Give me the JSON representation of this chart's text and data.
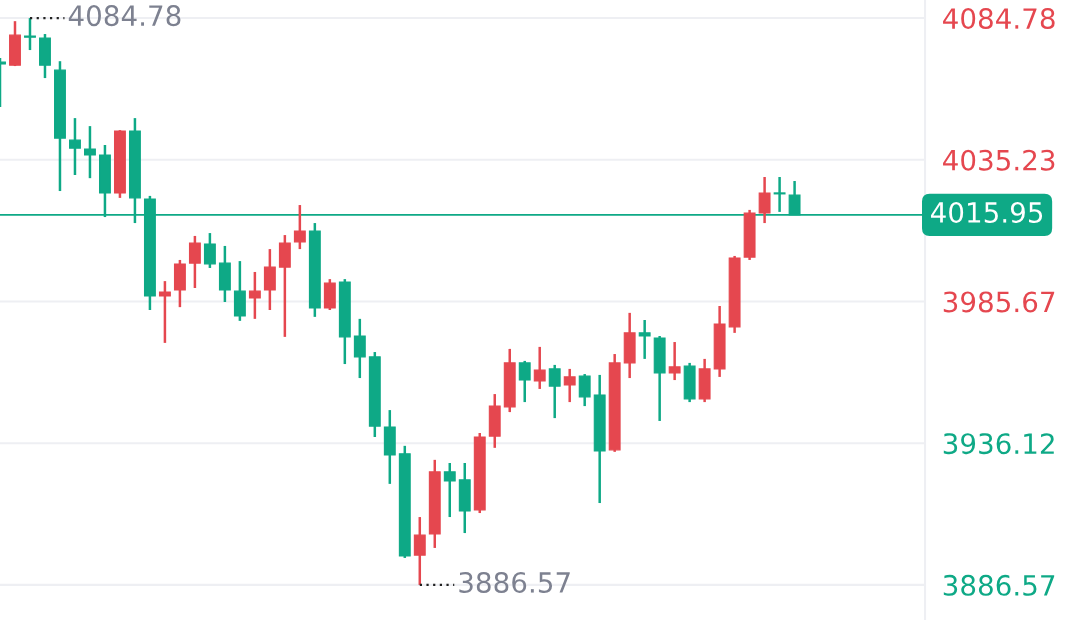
{
  "chart_data": {
    "type": "candlestick",
    "categories": [
      null,
      null,
      null,
      null,
      null,
      null,
      null,
      null,
      null,
      null,
      null,
      null,
      null,
      null,
      null,
      null,
      null,
      null,
      null,
      null,
      null,
      null,
      null,
      null,
      null,
      null,
      null,
      null,
      null,
      null,
      null,
      null,
      null,
      null,
      null,
      null,
      null,
      null,
      null,
      null,
      null,
      null,
      null,
      null,
      null,
      null,
      null,
      null,
      null,
      null,
      null,
      null,
      null,
      null
    ],
    "ohlc": [
      [
        4069.4,
        4070.8,
        4053.7,
        4068.7
      ],
      [
        4068.3,
        4083.7,
        4068.0,
        4078.8
      ],
      [
        4078.5,
        4084.78,
        4073.6,
        4078.1
      ],
      [
        4077.8,
        4079.2,
        4063.8,
        4068.3
      ],
      [
        4066.6,
        4069.7,
        4024.3,
        4042.8
      ],
      [
        4042.1,
        4049.8,
        4029.9,
        4039.3
      ],
      [
        4039.0,
        4047.0,
        4028.8,
        4036.9
      ],
      [
        4036.9,
        4040.4,
        4015.2,
        4023.6
      ],
      [
        4023.6,
        4045.6,
        4021.9,
        4045.3
      ],
      [
        4045.3,
        4049.8,
        4013.1,
        4021.9
      ],
      [
        4021.5,
        4022.6,
        3982.7,
        3987.6
      ],
      [
        3987.6,
        3992.8,
        3971.2,
        3989.0
      ],
      [
        3989.7,
        4000.2,
        3983.7,
        3998.8
      ],
      [
        3999.1,
        4008.6,
        3990.4,
        4006.1
      ],
      [
        4005.8,
        4009.6,
        3997.4,
        3998.8
      ],
      [
        3999.1,
        4005.1,
        3985.5,
        3989.7
      ],
      [
        3989.3,
        3999.8,
        3978.9,
        3980.6
      ],
      [
        3986.9,
        3996.0,
        3979.6,
        3989.3
      ],
      [
        3989.7,
        4004.0,
        3982.7,
        3997.7
      ],
      [
        3997.7,
        4008.9,
        3973.3,
        4006.1
      ],
      [
        4006.5,
        4019.4,
        4004.0,
        4010.3
      ],
      [
        4010.3,
        4013.1,
        3980.3,
        3983.4
      ],
      [
        3983.4,
        3993.5,
        3982.7,
        3992.1
      ],
      [
        3992.5,
        3993.5,
        3963.8,
        3973.3
      ],
      [
        3973.6,
        3979.6,
        3958.9,
        3966.3
      ],
      [
        3966.3,
        3968.0,
        3938.3,
        3942.1
      ],
      [
        3941.8,
        3947.7,
        3921.9,
        3932.0
      ],
      [
        3932.4,
        3935.2,
        3896.0,
        3896.7
      ],
      [
        3897.0,
        3910.3,
        3886.57,
        3904.0
      ],
      [
        3904.4,
        3930.3,
        3899.5,
        3926.1
      ],
      [
        3926.1,
        3929.2,
        3910.3,
        3922.9
      ],
      [
        3923.3,
        3929.2,
        3904.7,
        3912.4
      ],
      [
        3912.8,
        3939.7,
        3911.7,
        3938.3
      ],
      [
        3938.6,
        3953.3,
        3934.5,
        3949.1
      ],
      [
        3948.8,
        3969.1,
        3947.0,
        3964.2
      ],
      [
        3964.2,
        3964.9,
        3950.5,
        3958.2
      ],
      [
        3957.9,
        3969.8,
        3955.1,
        3961.7
      ],
      [
        3962.1,
        3963.5,
        3944.9,
        3956.1
      ],
      [
        3956.5,
        3962.1,
        3950.5,
        3959.3
      ],
      [
        3959.6,
        3960.3,
        3949.1,
        3952.3
      ],
      [
        3953.0,
        3960.0,
        3915.2,
        3933.4
      ],
      [
        3933.8,
        3967.3,
        3933.1,
        3964.2
      ],
      [
        3964.2,
        3981.7,
        3958.9,
        3974.7
      ],
      [
        3974.7,
        3979.2,
        3965.6,
        3973.6
      ],
      [
        3972.9,
        3973.6,
        3943.9,
        3960.7
      ],
      [
        3960.7,
        3971.5,
        3958.2,
        3962.8
      ],
      [
        3963.1,
        3964.2,
        3950.5,
        3951.6
      ],
      [
        3951.6,
        3965.6,
        3950.5,
        3962.1
      ],
      [
        3962.1,
        3984.1,
        3959.3,
        3977.8
      ],
      [
        3976.8,
        4001.6,
        3974.7,
        4000.9
      ],
      [
        4001.2,
        4017.7,
        4000.2,
        4016.6
      ],
      [
        4016.6,
        4029.2,
        4013.1,
        4023.6
      ],
      [
        4023.6,
        4029.2,
        4017.0,
        4023.3
      ],
      [
        4022.9,
        4027.8,
        4015.95,
        4015.95
      ]
    ],
    "colors": [
      "#0ea986",
      "#e5474f",
      "#0ea986",
      "#0ea986",
      "#0ea986",
      "#0ea986",
      "#0ea986",
      "#0ea986",
      "#e5474f",
      "#0ea986",
      "#0ea986",
      "#e5474f",
      "#e5474f",
      "#e5474f",
      "#0ea986",
      "#0ea986",
      "#0ea986",
      "#e5474f",
      "#e5474f",
      "#e5474f",
      "#e5474f",
      "#0ea986",
      "#e5474f",
      "#0ea986",
      "#0ea986",
      "#0ea986",
      "#0ea986",
      "#0ea986",
      "#e5474f",
      "#e5474f",
      "#0ea986",
      "#0ea986",
      "#e5474f",
      "#e5474f",
      "#e5474f",
      "#0ea986",
      "#e5474f",
      "#0ea986",
      "#e5474f",
      "#0ea986",
      "#0ea986",
      "#e5474f",
      "#e5474f",
      "#0ea986",
      "#0ea986",
      "#e5474f",
      "#0ea986",
      "#e5474f",
      "#e5474f",
      "#e5474f",
      "#e5474f",
      "#e5474f",
      "#0ea986",
      "#0ea986"
    ],
    "ylim": [
      3874.3,
      4091.1
    ],
    "yticks": [
      3886.57,
      3936.12,
      3985.67,
      4035.23,
      4084.78
    ],
    "grid": "y",
    "ref_lines": [
      {
        "axis": "y",
        "value": 4015.95,
        "label": "4015.95",
        "color": "#0ea986"
      }
    ],
    "annotations": [
      "4084.78",
      "3886.57"
    ]
  }
}
